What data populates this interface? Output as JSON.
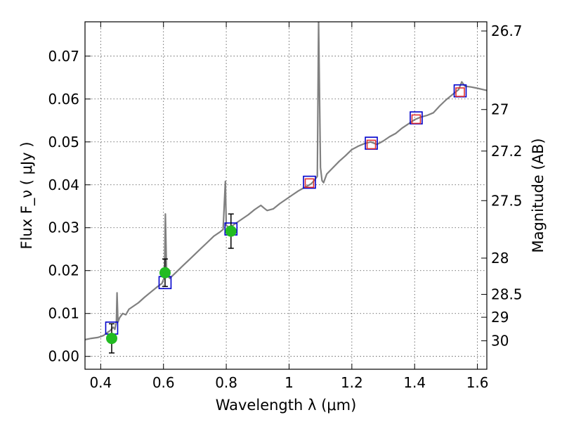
{
  "chart_data": {
    "type": "scatter",
    "xlabel": "Wavelength λ (μm)",
    "ylabel": "Flux F_ν ( μJy )",
    "y2label": "Magnitude (AB)",
    "xlim": [
      0.35,
      1.63
    ],
    "ylim": [
      -0.003,
      0.078
    ],
    "x_ticks": [
      {
        "value": 0.4,
        "label": "0.4"
      },
      {
        "value": 0.6,
        "label": "0.6"
      },
      {
        "value": 0.8,
        "label": "0.8"
      },
      {
        "value": 1.0,
        "label": "1"
      },
      {
        "value": 1.2,
        "label": "1.2"
      },
      {
        "value": 1.4,
        "label": "1.4"
      },
      {
        "value": 1.6,
        "label": "1.6"
      }
    ],
    "y_ticks": [
      {
        "value": 0.0,
        "label": "0.00"
      },
      {
        "value": 0.01,
        "label": "0.01"
      },
      {
        "value": 0.02,
        "label": "0.02"
      },
      {
        "value": 0.03,
        "label": "0.03"
      },
      {
        "value": 0.04,
        "label": "0.04"
      },
      {
        "value": 0.05,
        "label": "0.05"
      },
      {
        "value": 0.06,
        "label": "0.06"
      },
      {
        "value": 0.07,
        "label": "0.07"
      }
    ],
    "y2_ticks": [
      {
        "value": 26.7,
        "label": "26.7"
      },
      {
        "value": 27.0,
        "label": "27"
      },
      {
        "value": 27.2,
        "label": "27.2"
      },
      {
        "value": 27.5,
        "label": "27.5"
      },
      {
        "value": 28.0,
        "label": "28"
      },
      {
        "value": 28.5,
        "label": "28.5"
      },
      {
        "value": 29.0,
        "label": "29"
      },
      {
        "value": 30.0,
        "label": "30"
      }
    ],
    "grid": true,
    "series": [
      {
        "kind": "spectrum-line",
        "color": "#808080",
        "points": [
          [
            0.35,
            0.0039
          ],
          [
            0.37,
            0.0042
          ],
          [
            0.39,
            0.0044
          ],
          [
            0.4,
            0.0046
          ],
          [
            0.41,
            0.0049
          ],
          [
            0.42,
            0.0055
          ],
          [
            0.43,
            0.006
          ],
          [
            0.44,
            0.0068
          ],
          [
            0.445,
            0.0063
          ],
          [
            0.45,
            0.0081
          ],
          [
            0.452,
            0.0148
          ],
          [
            0.455,
            0.008
          ],
          [
            0.46,
            0.009
          ],
          [
            0.47,
            0.01
          ],
          [
            0.48,
            0.0097
          ],
          [
            0.49,
            0.011
          ],
          [
            0.5,
            0.0115
          ],
          [
            0.52,
            0.0125
          ],
          [
            0.54,
            0.0138
          ],
          [
            0.56,
            0.015
          ],
          [
            0.58,
            0.0162
          ],
          [
            0.595,
            0.017
          ],
          [
            0.603,
            0.0185
          ],
          [
            0.606,
            0.0332
          ],
          [
            0.61,
            0.019
          ],
          [
            0.62,
            0.0182
          ],
          [
            0.64,
            0.0196
          ],
          [
            0.66,
            0.021
          ],
          [
            0.68,
            0.0224
          ],
          [
            0.7,
            0.0238
          ],
          [
            0.72,
            0.0252
          ],
          [
            0.74,
            0.0266
          ],
          [
            0.76,
            0.028
          ],
          [
            0.78,
            0.029
          ],
          [
            0.79,
            0.0296
          ],
          [
            0.797,
            0.0408
          ],
          [
            0.8,
            0.0305
          ],
          [
            0.81,
            0.03
          ],
          [
            0.83,
            0.031
          ],
          [
            0.85,
            0.032
          ],
          [
            0.87,
            0.033
          ],
          [
            0.89,
            0.0342
          ],
          [
            0.91,
            0.0352
          ],
          [
            0.92,
            0.0346
          ],
          [
            0.93,
            0.034
          ],
          [
            0.95,
            0.0344
          ],
          [
            0.97,
            0.0356
          ],
          [
            0.99,
            0.0366
          ],
          [
            1.01,
            0.0376
          ],
          [
            1.03,
            0.0386
          ],
          [
            1.05,
            0.0394
          ],
          [
            1.07,
            0.0402
          ],
          [
            1.08,
            0.041
          ],
          [
            1.09,
            0.042
          ],
          [
            1.094,
            0.078
          ],
          [
            1.1,
            0.044
          ],
          [
            1.105,
            0.041
          ],
          [
            1.11,
            0.0405
          ],
          [
            1.12,
            0.0425
          ],
          [
            1.14,
            0.044
          ],
          [
            1.16,
            0.0455
          ],
          [
            1.18,
            0.0468
          ],
          [
            1.2,
            0.0482
          ],
          [
            1.22,
            0.049
          ],
          [
            1.24,
            0.0496
          ],
          [
            1.26,
            0.05
          ],
          [
            1.28,
            0.0494
          ],
          [
            1.3,
            0.0502
          ],
          [
            1.32,
            0.0512
          ],
          [
            1.34,
            0.052
          ],
          [
            1.36,
            0.0532
          ],
          [
            1.38,
            0.0542
          ],
          [
            1.4,
            0.0552
          ],
          [
            1.42,
            0.0558
          ],
          [
            1.44,
            0.0562
          ],
          [
            1.46,
            0.0568
          ],
          [
            1.48,
            0.0584
          ],
          [
            1.5,
            0.0598
          ],
          [
            1.52,
            0.061
          ],
          [
            1.54,
            0.0622
          ],
          [
            1.55,
            0.064
          ],
          [
            1.56,
            0.063
          ],
          [
            1.58,
            0.0628
          ],
          [
            1.6,
            0.0625
          ],
          [
            1.63,
            0.062
          ]
        ]
      },
      {
        "kind": "model-photometry",
        "marker": "open-square",
        "color": "#0000cc",
        "points": [
          [
            0.435,
            0.0066
          ],
          [
            0.605,
            0.0172
          ],
          [
            0.815,
            0.0297
          ],
          [
            1.065,
            0.0406
          ],
          [
            1.262,
            0.0497
          ],
          [
            1.405,
            0.0556
          ],
          [
            1.545,
            0.0619
          ]
        ]
      },
      {
        "kind": "observed-photometry",
        "marker": "open-square",
        "color": "#e03030",
        "points": [
          [
            1.065,
            0.0404
          ],
          [
            1.262,
            0.0494
          ],
          [
            1.405,
            0.0553
          ],
          [
            1.545,
            0.0616
          ]
        ]
      },
      {
        "kind": "observed-photometry",
        "marker": "filled-circle",
        "color": "#22bb22",
        "points": [
          {
            "x": 0.435,
            "y": 0.0042,
            "err": 0.0034
          },
          {
            "x": 0.605,
            "y": 0.0195,
            "err": 0.0032
          },
          {
            "x": 0.815,
            "y": 0.0292,
            "err": 0.004
          }
        ]
      }
    ]
  }
}
